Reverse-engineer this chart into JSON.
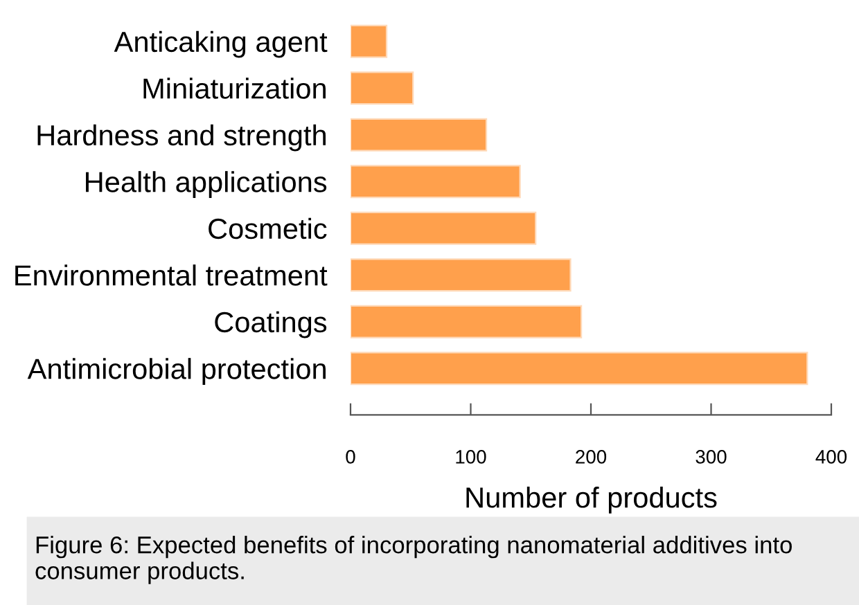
{
  "chart_data": {
    "type": "bar",
    "orientation": "horizontal",
    "categories": [
      "Anticaking agent",
      "Miniaturization",
      "Hardness and strength",
      "Health applications",
      "Cosmetic",
      "Environmental treatment",
      "Coatings",
      "Antimicrobial protection"
    ],
    "values": [
      30,
      52,
      113,
      141,
      154,
      183,
      192,
      380
    ],
    "color": "#ffa04c",
    "xlabel": "Number of products",
    "xlim": [
      0,
      400
    ],
    "xticks": [
      0,
      100,
      200,
      300,
      400
    ],
    "grid": false,
    "legend": false,
    "annotations": [
      "Figure 6: Expected benefits of incorporating nanomaterial additives into consumer products."
    ]
  }
}
